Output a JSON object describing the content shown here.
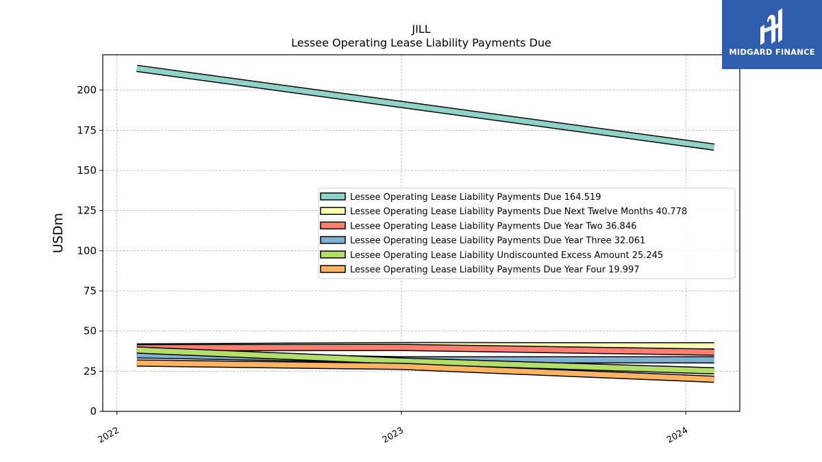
{
  "brand": {
    "name": "MIDGARD FINANCE",
    "color": "#2f5eae"
  },
  "chart_data": {
    "type": "line",
    "title": "JILL",
    "subtitle": "Lessee Operating Lease Liability Payments Due",
    "xlabel": "",
    "ylabel": "USDm",
    "x": [
      2022.07,
      2024.1
    ],
    "xticks": [
      "2022",
      "2023",
      "2024"
    ],
    "xlim": [
      2021.95,
      2024.19
    ],
    "ylim": [
      0,
      222
    ],
    "yticks": [
      0,
      25,
      50,
      75,
      100,
      125,
      150,
      175,
      200
    ],
    "grid": true,
    "legend_position": "center-right",
    "series": [
      {
        "name": "Lessee Operating Lease Liability Payments Due",
        "label": "164.519",
        "color": "#8dd3c7",
        "x": [
          2022.07,
          2024.1
        ],
        "values": [
          213.5,
          164.519
        ]
      },
      {
        "name": "Lessee Operating Lease Liability Payments Due Next Twelve Months",
        "label": "40.778",
        "color": "#ffffb3",
        "x": [
          2022.07,
          2023.0,
          2024.1
        ],
        "values": [
          40.1,
          40.9,
          40.778
        ]
      },
      {
        "name": "Lessee Operating Lease Liability Payments Due Year Two",
        "label": "36.846",
        "color": "#fb8072",
        "x": [
          2022.07,
          2023.0,
          2024.1
        ],
        "values": [
          39.6,
          39.8,
          36.846
        ]
      },
      {
        "name": "Lessee Operating Lease Liability Payments Due Year Three",
        "label": "32.061",
        "color": "#80b1d3",
        "x": [
          2022.07,
          2023.0,
          2024.1
        ],
        "values": [
          35.2,
          32.1,
          32.061
        ]
      },
      {
        "name": "Lessee Operating Lease Liability Undiscounted Excess Amount",
        "label": "25.245",
        "color": "#b3de69",
        "x": [
          2022.07,
          2023.0,
          2024.1
        ],
        "values": [
          38.2,
          31.3,
          25.245
        ]
      },
      {
        "name": "Lessee Operating Lease Liability Payments Due Year Four",
        "label": "19.997",
        "color": "#fdb462",
        "x": [
          2022.07,
          2023.0,
          2024.1
        ],
        "values": [
          30.1,
          28.0,
          19.997
        ]
      }
    ]
  }
}
